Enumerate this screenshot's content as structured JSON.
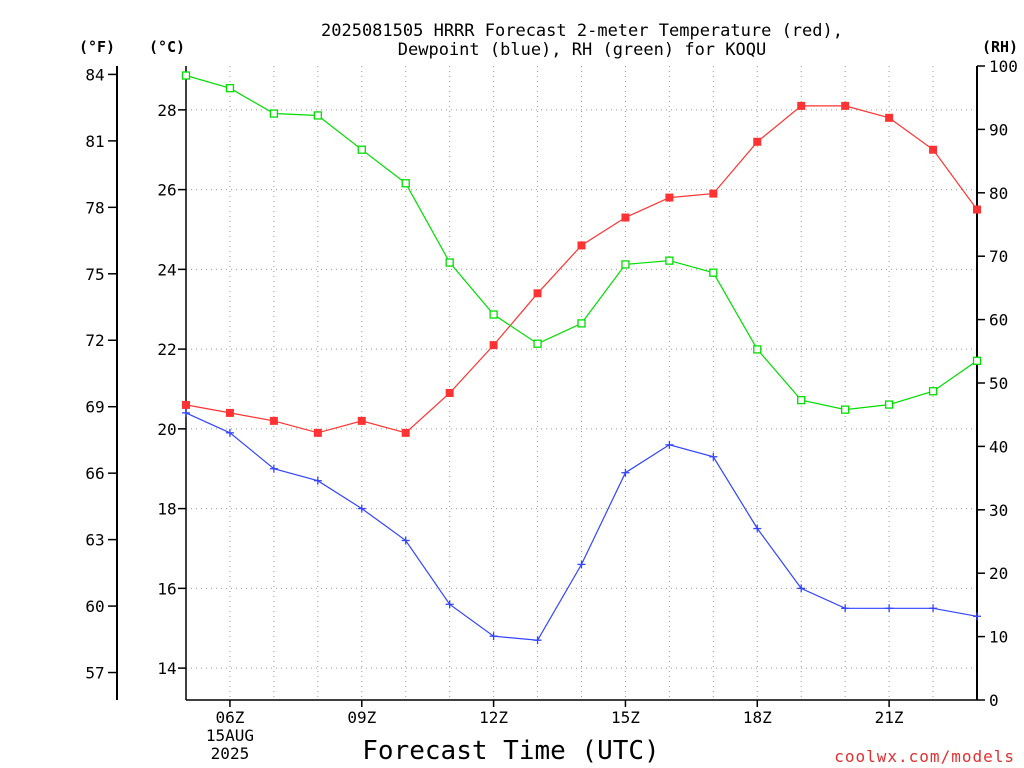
{
  "title_line1": "2025081505 HRRR Forecast 2-meter Temperature (red),",
  "title_line2": "Dewpoint (blue), RH (green) for KOQU",
  "credit": "coolwx.com/models",
  "units": {
    "f": "(°F)",
    "c": "(°C)",
    "rh": "(RH)"
  },
  "chart_data": {
    "type": "line",
    "title": "2025081505 HRRR Forecast 2-meter Temperature (red), Dewpoint (blue), RH (green) for KOQU",
    "xlabel": "Forecast Time (UTC)",
    "x_hours": [
      5,
      6,
      7,
      8,
      9,
      10,
      11,
      12,
      13,
      14,
      15,
      16,
      17,
      18,
      19,
      20,
      21,
      22,
      23
    ],
    "x_range": [
      5,
      23
    ],
    "x_ticks": [
      {
        "hour": 6,
        "label": "06Z",
        "sub": [
          "15AUG",
          "2025"
        ]
      },
      {
        "hour": 9,
        "label": "09Z"
      },
      {
        "hour": 12,
        "label": "12Z"
      },
      {
        "hour": 15,
        "label": "15Z"
      },
      {
        "hour": 18,
        "label": "18Z"
      },
      {
        "hour": 21,
        "label": "21Z"
      }
    ],
    "ylim_c": [
      13.2,
      29.1
    ],
    "ylim_rh": [
      0,
      100
    ],
    "y_ticks_c": [
      "14",
      "16",
      "18",
      "20",
      "22",
      "24",
      "26",
      "28"
    ],
    "y_ticks_f": [
      "57",
      "60",
      "63",
      "66",
      "69",
      "72",
      "75",
      "78",
      "81",
      "84"
    ],
    "y_ticks_rh": [
      "0",
      "10",
      "20",
      "30",
      "40",
      "50",
      "60",
      "70",
      "80",
      "90",
      "100"
    ],
    "grid": true,
    "colors": {
      "temperature": "#ff3333",
      "dewpoint": "#3344ff",
      "rh": "#00dd00"
    },
    "series": [
      {
        "name": "Temperature (red)",
        "axis": "c",
        "marker": "filled-square",
        "values": [
          20.6,
          20.4,
          20.2,
          19.9,
          20.2,
          19.9,
          20.9,
          22.1,
          23.4,
          24.6,
          25.3,
          25.8,
          25.9,
          27.2,
          28.1,
          28.1,
          27.8,
          27.0,
          25.5
        ]
      },
      {
        "name": "Dewpoint (blue)",
        "axis": "c",
        "marker": "plus",
        "values": [
          20.4,
          19.9,
          19.0,
          18.7,
          18.0,
          17.2,
          15.6,
          14.8,
          14.7,
          16.6,
          18.9,
          19.6,
          19.3,
          17.5,
          16.0,
          15.5,
          15.5,
          15.5,
          15.3
        ]
      },
      {
        "name": "RH (green)",
        "axis": "rh",
        "marker": "open-square",
        "values": [
          98.5,
          96.5,
          92.5,
          92.2,
          86.8,
          81.5,
          69.0,
          60.8,
          56.2,
          59.4,
          68.7,
          69.3,
          67.4,
          55.3,
          47.3,
          45.8,
          46.6,
          48.7,
          53.5
        ]
      }
    ]
  }
}
